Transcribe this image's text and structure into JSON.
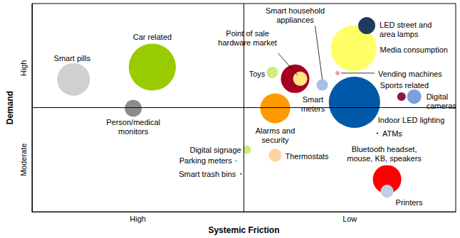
{
  "chart_data": {
    "type": "scatter",
    "x_label": "Systemic Friction",
    "y_label": "Demand",
    "xlim": [
      0,
      100
    ],
    "ylim": [
      0,
      100
    ],
    "xticks": [
      {
        "value": 25,
        "label": "High"
      },
      {
        "value": 75,
        "label": "Low"
      }
    ],
    "yticks": [
      {
        "value": 25,
        "label": "Moderate"
      },
      {
        "value": 69,
        "label": "High"
      }
    ],
    "grid": false,
    "tick_labels": true,
    "quadrant_lines": {
      "x": 50,
      "y": 50
    },
    "labels": [
      "Smart pills",
      "Car related",
      "Person/medical\nmonitors",
      "Toys",
      "Smart\nmeters",
      "Point of sale\nhardware market",
      "Smart household\nappliances",
      "Alarms and\nsecurity",
      "Media consumption",
      "LED street and\narea lamps",
      "Vending machines",
      "Indoor LED lighting",
      "Sports related",
      "Digital\ncameras",
      "ATMs",
      "Digital signage",
      "Parking meters",
      "Smart trash bins",
      "Thermostats",
      "Bluetooth headset,\nmouse, KB, speakers",
      "Printers"
    ],
    "x": [
      9.8,
      28.4,
      23.9,
      56.7,
      62.1,
      63.3,
      68.5,
      57.4,
      75.9,
      79.0,
      72.1,
      76.1,
      87.2,
      90.2,
      81.5,
      50.7,
      48.2,
      49.3,
      57.4,
      83.8,
      83.8
    ],
    "y": [
      63.6,
      69.5,
      49.7,
      66.9,
      63.9,
      63.9,
      60.9,
      49.7,
      78.5,
      89.4,
      66.6,
      52.6,
      55.3,
      55.3,
      37.7,
      29.8,
      24.5,
      18.2,
      27.2,
      15.6,
      9.9
    ],
    "sizes": [
      46,
      66,
      24,
      16,
      40,
      20,
      16,
      42,
      64,
      24,
      6,
      72,
      12,
      20,
      2,
      12,
      3,
      2,
      18,
      40,
      18
    ],
    "colors": [
      "#d0d0d0",
      "#99cc00",
      "#8c8c8c",
      "#ccee77",
      "#a50021",
      "#ffe680",
      "#a8c0e8",
      "#ff9900",
      "#ffff66",
      "#1f3a5f",
      "#f4a0a0",
      "#0059a8",
      "#8b1a4a",
      "#7ba0dc",
      "#000000",
      "#ccee77",
      "#a8c0e8",
      "#8b1a1a",
      "#fcd5a0",
      "#ff0000",
      "#c0d0e8"
    ]
  }
}
